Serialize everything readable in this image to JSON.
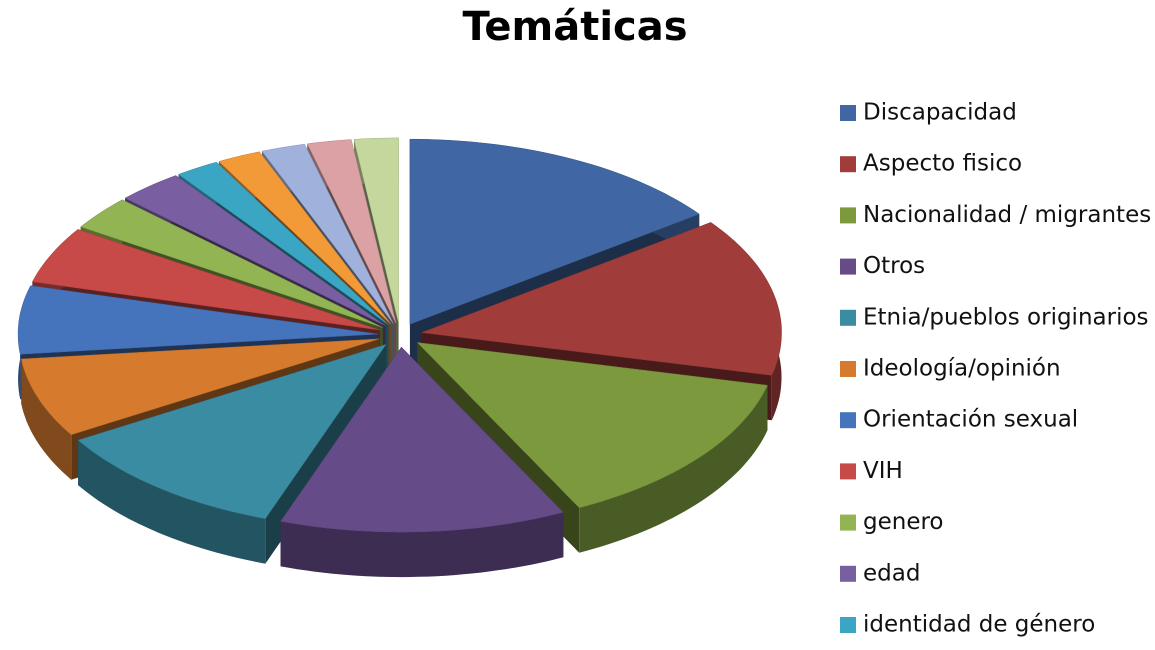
{
  "chart_data": {
    "type": "pie3d",
    "title": "Temáticas",
    "categories": [
      "Discapacidad",
      "Aspecto fisico",
      "Nacionalidad / migrantes",
      "Otros",
      "Etnia/pueblos originarios",
      "Ideología/opinión",
      "Orientación sexual",
      "VIH",
      "genero",
      "edad",
      "identidad de género",
      null,
      null,
      null,
      null
    ],
    "values": [
      15,
      14,
      14,
      13,
      11,
      7,
      6,
      5,
      3,
      3,
      2,
      2,
      2,
      2,
      2
    ],
    "colors": [
      "#4067a3",
      "#a03d3a",
      "#7c993d",
      "#654b88",
      "#3a8ca3",
      "#d67b2e",
      "#4574bd",
      "#c74a49",
      "#92b452",
      "#7a5ea2",
      "#3aa6c4",
      "#f29a38",
      "#a0b1dc",
      "#dba1a4",
      "#c4d79c"
    ]
  }
}
